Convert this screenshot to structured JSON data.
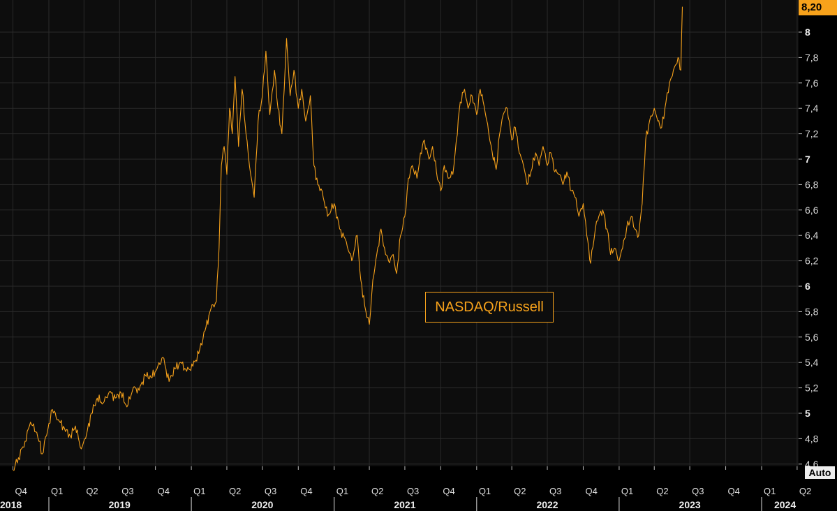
{
  "chart_data": {
    "type": "line",
    "title": "",
    "xlabel": "",
    "ylabel": "",
    "ylim": [
      4.5,
      8.2
    ],
    "y_ticks": [
      "4,6",
      "4,8",
      "5",
      "5,2",
      "5,4",
      "5,6",
      "5,8",
      "6",
      "6,2",
      "6,4",
      "6,6",
      "6,8",
      "7",
      "7,2",
      "7,4",
      "7,6",
      "7,8",
      "8"
    ],
    "major_y_ticks": [
      "5",
      "6",
      "7",
      "8"
    ],
    "x_range": [
      "2018-10-01",
      "2024-05-15"
    ],
    "quarter_ticks": [
      {
        "label": "Q4",
        "date": "2018-10-01"
      },
      {
        "label": "Q1",
        "date": "2019-01-01"
      },
      {
        "label": "Q2",
        "date": "2019-04-01"
      },
      {
        "label": "Q3",
        "date": "2019-07-01"
      },
      {
        "label": "Q4",
        "date": "2019-10-01"
      },
      {
        "label": "Q1",
        "date": "2020-01-01"
      },
      {
        "label": "Q2",
        "date": "2020-04-01"
      },
      {
        "label": "Q3",
        "date": "2020-07-01"
      },
      {
        "label": "Q4",
        "date": "2020-10-01"
      },
      {
        "label": "Q1",
        "date": "2021-01-01"
      },
      {
        "label": "Q2",
        "date": "2021-04-01"
      },
      {
        "label": "Q3",
        "date": "2021-07-01"
      },
      {
        "label": "Q4",
        "date": "2021-10-01"
      },
      {
        "label": "Q1",
        "date": "2022-01-01"
      },
      {
        "label": "Q2",
        "date": "2022-04-01"
      },
      {
        "label": "Q3",
        "date": "2022-07-01"
      },
      {
        "label": "Q4",
        "date": "2022-10-01"
      },
      {
        "label": "Q1",
        "date": "2023-01-01"
      },
      {
        "label": "Q2",
        "date": "2023-04-01"
      },
      {
        "label": "Q3",
        "date": "2023-07-01"
      },
      {
        "label": "Q4",
        "date": "2023-10-01"
      },
      {
        "label": "Q1",
        "date": "2024-01-01"
      },
      {
        "label": "Q2",
        "date": "2024-04-01"
      }
    ],
    "year_labels": [
      {
        "label": "2018",
        "date": "2018-11-15"
      },
      {
        "label": "2019",
        "date": "2019-07-01"
      },
      {
        "label": "2020",
        "date": "2020-07-01"
      },
      {
        "label": "2021",
        "date": "2021-07-01"
      },
      {
        "label": "2022",
        "date": "2022-07-01"
      },
      {
        "label": "2023",
        "date": "2023-07-01"
      },
      {
        "label": "2024",
        "date": "2024-03-01"
      }
    ],
    "year_boundaries": [
      "2019-01-01",
      "2020-01-01",
      "2021-01-01",
      "2022-01-01",
      "2023-01-01",
      "2024-01-01"
    ],
    "series": [
      {
        "name": "NASDAQ/Russell",
        "color": "#f7a21b",
        "points": [
          [
            "2018-10-01",
            4.55
          ],
          [
            "2018-10-15",
            4.65
          ],
          [
            "2018-11-01",
            4.78
          ],
          [
            "2018-11-15",
            4.93
          ],
          [
            "2018-12-01",
            4.85
          ],
          [
            "2018-12-15",
            4.68
          ],
          [
            "2019-01-01",
            4.92
          ],
          [
            "2019-01-10",
            5.03
          ],
          [
            "2019-01-25",
            4.95
          ],
          [
            "2019-02-10",
            4.88
          ],
          [
            "2019-02-25",
            4.82
          ],
          [
            "2019-03-10",
            4.9
          ],
          [
            "2019-03-25",
            4.72
          ],
          [
            "2019-04-05",
            4.8
          ],
          [
            "2019-04-20",
            5.0
          ],
          [
            "2019-05-05",
            5.12
          ],
          [
            "2019-05-20",
            5.08
          ],
          [
            "2019-06-05",
            5.17
          ],
          [
            "2019-06-20",
            5.12
          ],
          [
            "2019-07-05",
            5.16
          ],
          [
            "2019-07-20",
            5.05
          ],
          [
            "2019-08-05",
            5.2
          ],
          [
            "2019-08-20",
            5.18
          ],
          [
            "2019-09-05",
            5.3
          ],
          [
            "2019-09-20",
            5.28
          ],
          [
            "2019-10-05",
            5.35
          ],
          [
            "2019-10-20",
            5.44
          ],
          [
            "2019-11-05",
            5.25
          ],
          [
            "2019-11-20",
            5.35
          ],
          [
            "2019-12-05",
            5.4
          ],
          [
            "2019-12-20",
            5.33
          ],
          [
            "2020-01-05",
            5.37
          ],
          [
            "2020-01-20",
            5.47
          ],
          [
            "2020-02-05",
            5.65
          ],
          [
            "2020-02-20",
            5.82
          ],
          [
            "2020-03-05",
            5.88
          ],
          [
            "2020-03-12",
            6.3
          ],
          [
            "2020-03-18",
            6.95
          ],
          [
            "2020-03-25",
            7.1
          ],
          [
            "2020-04-01",
            6.88
          ],
          [
            "2020-04-08",
            7.4
          ],
          [
            "2020-04-15",
            7.2
          ],
          [
            "2020-04-22",
            7.65
          ],
          [
            "2020-05-01",
            7.1
          ],
          [
            "2020-05-10",
            7.55
          ],
          [
            "2020-05-20",
            7.2
          ],
          [
            "2020-06-01",
            6.88
          ],
          [
            "2020-06-10",
            6.7
          ],
          [
            "2020-06-20",
            7.3
          ],
          [
            "2020-07-01",
            7.5
          ],
          [
            "2020-07-10",
            7.85
          ],
          [
            "2020-07-20",
            7.35
          ],
          [
            "2020-08-01",
            7.7
          ],
          [
            "2020-08-10",
            7.4
          ],
          [
            "2020-08-20",
            7.2
          ],
          [
            "2020-09-01",
            7.95
          ],
          [
            "2020-09-10",
            7.5
          ],
          [
            "2020-09-20",
            7.7
          ],
          [
            "2020-10-01",
            7.4
          ],
          [
            "2020-10-10",
            7.55
          ],
          [
            "2020-10-20",
            7.3
          ],
          [
            "2020-11-01",
            7.5
          ],
          [
            "2020-11-10",
            6.95
          ],
          [
            "2020-11-20",
            6.8
          ],
          [
            "2020-12-01",
            6.75
          ],
          [
            "2020-12-15",
            6.55
          ],
          [
            "2021-01-01",
            6.65
          ],
          [
            "2021-01-15",
            6.45
          ],
          [
            "2021-02-01",
            6.35
          ],
          [
            "2021-02-15",
            6.2
          ],
          [
            "2021-03-01",
            6.4
          ],
          [
            "2021-03-10",
            6.05
          ],
          [
            "2021-03-20",
            5.85
          ],
          [
            "2021-04-01",
            5.7
          ],
          [
            "2021-04-10",
            6.05
          ],
          [
            "2021-04-20",
            6.25
          ],
          [
            "2021-05-01",
            6.45
          ],
          [
            "2021-05-10",
            6.3
          ],
          [
            "2021-05-20",
            6.2
          ],
          [
            "2021-06-01",
            6.25
          ],
          [
            "2021-06-10",
            6.1
          ],
          [
            "2021-06-20",
            6.4
          ],
          [
            "2021-07-01",
            6.55
          ],
          [
            "2021-07-10",
            6.85
          ],
          [
            "2021-07-20",
            6.95
          ],
          [
            "2021-08-01",
            6.85
          ],
          [
            "2021-08-10",
            7.05
          ],
          [
            "2021-08-20",
            7.15
          ],
          [
            "2021-09-01",
            7.0
          ],
          [
            "2021-09-10",
            7.1
          ],
          [
            "2021-09-20",
            6.9
          ],
          [
            "2021-10-01",
            6.75
          ],
          [
            "2021-10-10",
            6.95
          ],
          [
            "2021-10-20",
            6.85
          ],
          [
            "2021-11-01",
            6.88
          ],
          [
            "2021-11-10",
            7.15
          ],
          [
            "2021-11-20",
            7.45
          ],
          [
            "2021-12-01",
            7.55
          ],
          [
            "2021-12-10",
            7.4
          ],
          [
            "2021-12-20",
            7.5
          ],
          [
            "2022-01-01",
            7.35
          ],
          [
            "2022-01-10",
            7.55
          ],
          [
            "2022-01-20",
            7.42
          ],
          [
            "2022-02-01",
            7.2
          ],
          [
            "2022-02-10",
            7.05
          ],
          [
            "2022-02-20",
            6.92
          ],
          [
            "2022-03-01",
            7.2
          ],
          [
            "2022-03-10",
            7.35
          ],
          [
            "2022-03-20",
            7.4
          ],
          [
            "2022-04-01",
            7.15
          ],
          [
            "2022-04-10",
            7.25
          ],
          [
            "2022-04-20",
            7.05
          ],
          [
            "2022-05-01",
            6.95
          ],
          [
            "2022-05-10",
            6.8
          ],
          [
            "2022-05-20",
            6.9
          ],
          [
            "2022-06-01",
            7.05
          ],
          [
            "2022-06-10",
            6.95
          ],
          [
            "2022-06-20",
            7.1
          ],
          [
            "2022-07-01",
            6.95
          ],
          [
            "2022-07-10",
            7.05
          ],
          [
            "2022-07-20",
            6.9
          ],
          [
            "2022-08-01",
            6.88
          ],
          [
            "2022-08-10",
            6.8
          ],
          [
            "2022-08-20",
            6.9
          ],
          [
            "2022-09-01",
            6.75
          ],
          [
            "2022-09-10",
            6.7
          ],
          [
            "2022-09-20",
            6.55
          ],
          [
            "2022-10-01",
            6.65
          ],
          [
            "2022-10-10",
            6.4
          ],
          [
            "2022-10-20",
            6.18
          ],
          [
            "2022-11-01",
            6.45
          ],
          [
            "2022-11-10",
            6.55
          ],
          [
            "2022-11-20",
            6.6
          ],
          [
            "2022-12-01",
            6.45
          ],
          [
            "2022-12-10",
            6.25
          ],
          [
            "2022-12-20",
            6.3
          ],
          [
            "2023-01-01",
            6.2
          ],
          [
            "2023-01-10",
            6.3
          ],
          [
            "2023-01-20",
            6.45
          ],
          [
            "2023-02-01",
            6.55
          ],
          [
            "2023-02-10",
            6.45
          ],
          [
            "2023-02-20",
            6.4
          ],
          [
            "2023-03-01",
            6.65
          ],
          [
            "2023-03-10",
            7.15
          ],
          [
            "2023-03-20",
            7.3
          ],
          [
            "2023-04-01",
            7.4
          ],
          [
            "2023-04-10",
            7.3
          ],
          [
            "2023-04-20",
            7.25
          ],
          [
            "2023-05-01",
            7.45
          ],
          [
            "2023-05-10",
            7.6
          ],
          [
            "2023-05-20",
            7.7
          ],
          [
            "2023-06-01",
            7.8
          ],
          [
            "2023-06-08",
            7.7
          ],
          [
            "2023-06-12",
            8.2
          ]
        ]
      }
    ],
    "last_value_label": "8,20",
    "grid": true,
    "legend": "center"
  },
  "controls": {
    "auto_label": "Auto"
  },
  "colors": {
    "background": "#0d0d0d",
    "line": "#f7a21b",
    "grid": "#2a2a2a"
  }
}
